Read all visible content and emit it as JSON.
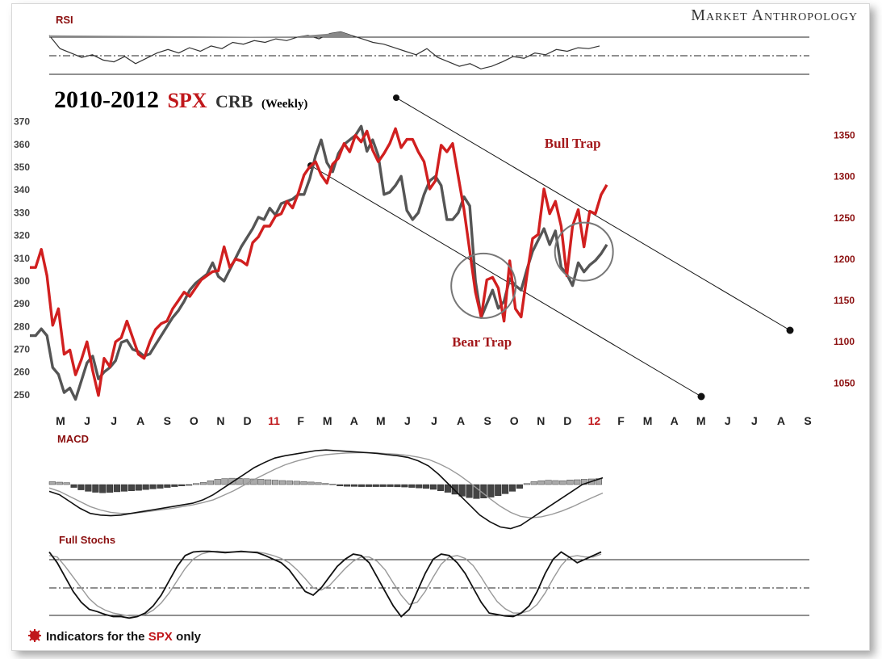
{
  "brand": "Market Anthropology",
  "footnote": {
    "prefix": "Indicators for the ",
    "highlight": "SPX",
    "suffix": " only",
    "marker_color": "#c0171b"
  },
  "colors": {
    "spx": "#d11f1f",
    "crb": "#555555",
    "accent": "#c0171b"
  },
  "chart_data": [
    {
      "type": "line",
      "panel": "RSI",
      "title": "RSI",
      "reference_levels": [
        "upper",
        "mid-dashdot",
        "lower"
      ],
      "values": [
        70,
        55,
        50,
        45,
        48,
        42,
        40,
        46,
        38,
        44,
        50,
        54,
        50,
        56,
        52,
        58,
        55,
        62,
        60,
        64,
        62,
        66,
        64,
        68,
        70,
        66,
        72,
        74,
        70,
        66,
        62,
        60,
        56,
        52,
        48,
        55,
        45,
        40,
        35,
        38,
        32,
        35,
        40,
        46,
        44,
        50,
        48,
        54,
        52,
        56,
        55,
        58
      ]
    },
    {
      "type": "line",
      "panel": "price",
      "title": "2010-2012",
      "title_parts": {
        "years": "2010-2012",
        "spx": "SPX",
        "crb": "CRB",
        "freq": "(Weekly)"
      },
      "left_axis": {
        "ticks": [
          "250",
          "260",
          "270",
          "280",
          "290",
          "300",
          "310",
          "320",
          "330",
          "340",
          "350",
          "360",
          "370"
        ],
        "range": [
          245,
          372
        ]
      },
      "right_axis": {
        "ticks": [
          "1050",
          "1100",
          "1150",
          "1200",
          "1250",
          "1300",
          "1350"
        ],
        "range": [
          1022,
          1372
        ]
      },
      "x_ticks": [
        "M",
        "J",
        "J",
        "A",
        "S",
        "O",
        "N",
        "D",
        "11",
        "F",
        "M",
        "A",
        "M",
        "J",
        "J",
        "A",
        "S",
        "O",
        "N",
        "D",
        "12",
        "F",
        "M",
        "A",
        "M",
        "J",
        "J",
        "A",
        "S"
      ],
      "x_year_ticks": [
        "11",
        "12"
      ],
      "series": [
        {
          "name": "SPX",
          "axis": "right",
          "values": [
            1190,
            1190,
            1212,
            1180,
            1120,
            1140,
            1085,
            1090,
            1060,
            1078,
            1100,
            1065,
            1035,
            1080,
            1070,
            1100,
            1105,
            1125,
            1105,
            1085,
            1080,
            1100,
            1115,
            1122,
            1125,
            1140,
            1150,
            1160,
            1155,
            1165,
            1175,
            1180,
            1185,
            1186,
            1215,
            1190,
            1200,
            1198,
            1193,
            1220,
            1227,
            1240,
            1240,
            1252,
            1255,
            1270,
            1262,
            1280,
            1302,
            1312,
            1318,
            1302,
            1292,
            1315,
            1322,
            1340,
            1330,
            1350,
            1342,
            1355,
            1332,
            1318,
            1328,
            1340,
            1358,
            1335,
            1345,
            1345,
            1330,
            1318,
            1285,
            1295,
            1338,
            1330,
            1340,
            1300,
            1260,
            1210,
            1160,
            1130,
            1175,
            1178,
            1165,
            1125,
            1198,
            1140,
            1130,
            1180,
            1225,
            1230,
            1285,
            1255,
            1270,
            1240,
            1180,
            1240,
            1260,
            1215,
            1258,
            1255,
            1278,
            1290
          ]
        },
        {
          "name": "CRB",
          "axis": "left",
          "values": [
            276,
            276,
            279,
            276,
            262,
            259,
            251,
            253,
            248,
            256,
            264,
            267,
            257,
            260,
            262,
            265,
            273,
            274,
            270,
            269,
            267,
            268,
            272,
            276,
            280,
            284,
            287,
            291,
            296,
            299,
            301,
            303,
            308,
            302,
            300,
            305,
            310,
            315,
            319,
            323,
            328,
            327,
            332,
            329,
            334,
            335,
            336,
            338,
            338,
            345,
            355,
            362,
            352,
            348,
            356,
            360,
            362,
            364,
            368,
            357,
            362,
            355,
            338,
            339,
            342,
            346,
            331,
            327,
            330,
            338,
            344,
            346,
            342,
            327,
            327,
            330,
            337,
            333,
            300,
            284,
            290,
            296,
            288,
            291,
            301,
            298,
            296,
            305,
            313,
            318,
            323,
            316,
            322,
            306,
            303,
            298,
            308,
            304,
            307,
            309,
            312,
            316
          ]
        }
      ],
      "annotations": [
        {
          "text": "Bull Trap",
          "at_index": 97
        },
        {
          "text": "Bear Trap",
          "at_index": 78
        }
      ]
    },
    {
      "type": "bar",
      "panel": "MACD",
      "title": "MACD",
      "macd": [
        -0.2,
        -0.3,
        -0.5,
        -0.7,
        -0.85,
        -0.9,
        -0.92,
        -0.9,
        -0.85,
        -0.8,
        -0.75,
        -0.7,
        -0.65,
        -0.6,
        -0.55,
        -0.45,
        -0.3,
        -0.1,
        0.1,
        0.3,
        0.5,
        0.65,
        0.78,
        0.85,
        0.9,
        0.95,
        1.0,
        1.02,
        1.0,
        0.98,
        0.96,
        0.94,
        0.92,
        0.88,
        0.85,
        0.8,
        0.7,
        0.55,
        0.3,
        0.0,
        -0.3,
        -0.6,
        -0.9,
        -1.1,
        -1.25,
        -1.3,
        -1.2,
        -1.0,
        -0.8,
        -0.6,
        -0.4,
        -0.2,
        0.0,
        0.1,
        0.2
      ],
      "signal": [
        -0.1,
        -0.2,
        -0.35,
        -0.5,
        -0.65,
        -0.75,
        -0.82,
        -0.85,
        -0.85,
        -0.82,
        -0.78,
        -0.74,
        -0.7,
        -0.65,
        -0.6,
        -0.53,
        -0.45,
        -0.32,
        -0.18,
        -0.02,
        0.15,
        0.3,
        0.45,
        0.58,
        0.68,
        0.76,
        0.83,
        0.88,
        0.91,
        0.93,
        0.94,
        0.94,
        0.93,
        0.91,
        0.89,
        0.86,
        0.81,
        0.74,
        0.62,
        0.47,
        0.28,
        0.06,
        -0.18,
        -0.42,
        -0.64,
        -0.82,
        -0.94,
        -0.98,
        -0.95,
        -0.88,
        -0.78,
        -0.66,
        -0.52,
        -0.38,
        -0.25
      ],
      "histogram": [
        0.3,
        0.25,
        0.2,
        -0.3,
        -0.55,
        -0.7,
        -0.8,
        -0.85,
        -0.82,
        -0.75,
        -0.7,
        -0.65,
        -0.6,
        -0.52,
        -0.45,
        -0.38,
        -0.3,
        -0.22,
        -0.15,
        -0.08,
        0.1,
        0.22,
        0.4,
        0.55,
        0.62,
        0.66,
        0.64,
        0.6,
        0.58,
        0.55,
        0.5,
        0.46,
        0.42,
        0.38,
        0.34,
        0.3,
        0.26,
        0.2,
        0.12,
        0.05,
        -0.15,
        -0.18,
        -0.2,
        -0.22,
        -0.22,
        -0.22,
        -0.22,
        -0.22,
        -0.24,
        -0.26,
        -0.3,
        -0.35,
        -0.4,
        -0.5,
        -0.65,
        -0.8,
        -1.0,
        -1.2,
        -1.35,
        -1.45,
        -1.4,
        -1.3,
        -1.15,
        -0.95,
        -0.7,
        -0.4,
        0.1,
        0.3,
        0.4,
        0.45,
        0.42,
        0.4,
        0.48,
        0.5,
        0.55,
        0.58,
        0.62
      ]
    },
    {
      "type": "line",
      "panel": "Full Stochs",
      "title": "Full Stochs",
      "range": [
        0,
        100
      ],
      "reference_levels": [
        80,
        50,
        20
      ],
      "k": [
        95,
        80,
        60,
        40,
        25,
        15,
        12,
        8,
        5,
        5,
        3,
        5,
        10,
        20,
        35,
        55,
        75,
        90,
        95,
        96,
        96,
        95,
        94,
        95,
        96,
        95,
        94,
        90,
        85,
        80,
        70,
        55,
        40,
        35,
        45,
        60,
        75,
        85,
        92,
        90,
        80,
        60,
        40,
        20,
        5,
        15,
        40,
        65,
        85,
        92,
        90,
        80,
        65,
        45,
        25,
        10,
        8,
        6,
        5,
        10,
        20,
        40,
        65,
        85,
        95,
        88,
        80,
        85,
        90,
        95
      ],
      "d": [
        90,
        88,
        75,
        60,
        45,
        30,
        20,
        14,
        10,
        8,
        6,
        6,
        8,
        14,
        24,
        38,
        55,
        72,
        85,
        92,
        95,
        96,
        95,
        95,
        95,
        95,
        95,
        93,
        90,
        86,
        80,
        70,
        58,
        45,
        42,
        48,
        60,
        72,
        82,
        88,
        88,
        82,
        70,
        52,
        35,
        22,
        25,
        40,
        60,
        78,
        88,
        90,
        86,
        76,
        60,
        42,
        26,
        16,
        10,
        10,
        13,
        22,
        38,
        58,
        76,
        88,
        90,
        88,
        88,
        92
      ]
    }
  ]
}
